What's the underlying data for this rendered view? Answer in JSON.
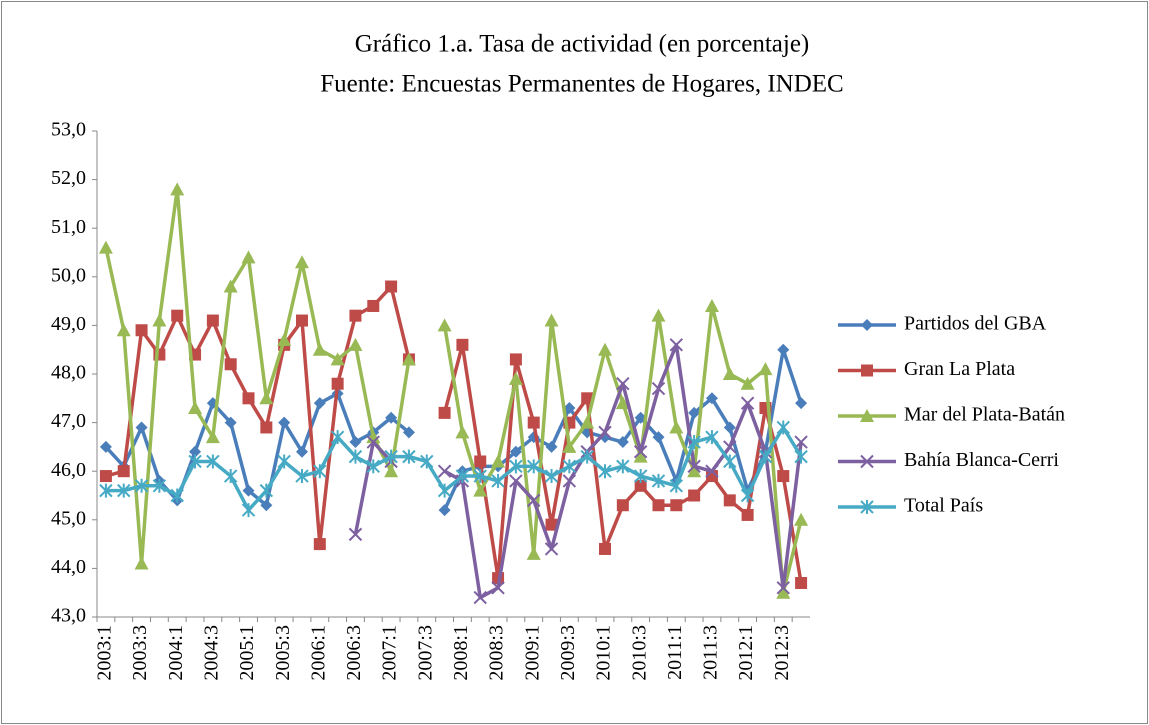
{
  "chart_data": {
    "type": "line",
    "title": "Gráfico 1.a. Tasa de actividad (en porcentaje)",
    "subtitle": "Fuente: Encuestas Permanentes de Hogares, INDEC",
    "categories": [
      "2003:1",
      null,
      "2003:3",
      null,
      "2004:1",
      null,
      "2004:3",
      null,
      "2005:1",
      null,
      "2005:3",
      null,
      "2006:1",
      null,
      "2006:3",
      null,
      "2007:1",
      null,
      "2007:3",
      null,
      "2008:1",
      null,
      "2008:3",
      null,
      "2009:1",
      null,
      "2009:3",
      null,
      "2010:1",
      null,
      "2010:3",
      null,
      "2011:1",
      null,
      "2011:3",
      null,
      "2012:1",
      null,
      "2012:3",
      null
    ],
    "ylim": [
      43,
      53
    ],
    "yticks": [
      {
        "value": 43,
        "label": "43,0"
      },
      {
        "value": 44,
        "label": "44,0"
      },
      {
        "value": 45,
        "label": "45,0"
      },
      {
        "value": 46,
        "label": "46,0"
      },
      {
        "value": 47,
        "label": "47,0"
      },
      {
        "value": 48,
        "label": "48,0"
      },
      {
        "value": 49,
        "label": "49,0"
      },
      {
        "value": 50,
        "label": "50,0"
      },
      {
        "value": 51,
        "label": "51,0"
      },
      {
        "value": 52,
        "label": "52,0"
      },
      {
        "value": 53,
        "label": "53,0"
      }
    ],
    "legend": "right",
    "series": [
      {
        "name": "Partidos del GBA",
        "color": "#4a7ebb",
        "marker": "diamond",
        "values": [
          46.5,
          46.1,
          46.9,
          45.8,
          45.4,
          46.4,
          47.4,
          47.0,
          45.6,
          45.3,
          47.0,
          46.4,
          47.4,
          47.6,
          46.6,
          46.8,
          47.1,
          46.8,
          null,
          45.2,
          46.0,
          46.1,
          46.1,
          46.4,
          46.7,
          46.5,
          47.3,
          46.8,
          46.7,
          46.6,
          47.1,
          46.7,
          45.8,
          47.2,
          47.5,
          46.9,
          45.6,
          46.4,
          48.5,
          47.4
        ]
      },
      {
        "name": "Gran La Plata",
        "color": "#be4b48",
        "marker": "square",
        "values": [
          45.9,
          46.0,
          48.9,
          48.4,
          49.2,
          48.4,
          49.1,
          48.2,
          47.5,
          46.9,
          48.6,
          49.1,
          44.5,
          47.8,
          49.2,
          49.4,
          49.8,
          48.3,
          null,
          47.2,
          48.6,
          46.2,
          43.8,
          48.3,
          47.0,
          44.9,
          47.0,
          47.5,
          44.4,
          45.3,
          45.7,
          45.3,
          45.3,
          45.5,
          45.9,
          45.4,
          45.1,
          47.3,
          45.9,
          43.7
        ]
      },
      {
        "name": "Mar del Plata-Batán",
        "color": "#98b954",
        "marker": "triangle",
        "values": [
          50.6,
          48.9,
          44.1,
          49.1,
          51.8,
          47.3,
          46.7,
          49.8,
          50.4,
          47.5,
          48.7,
          50.3,
          48.5,
          48.3,
          48.6,
          46.7,
          46.0,
          48.3,
          null,
          49.0,
          46.8,
          45.6,
          46.2,
          47.9,
          44.3,
          49.1,
          46.5,
          47.0,
          48.5,
          47.4,
          46.3,
          49.2,
          46.9,
          46.0,
          49.4,
          48.0,
          47.8,
          48.1,
          43.5,
          45.0
        ]
      },
      {
        "name": "Bahía Blanca-Cerri",
        "color": "#7d60a0",
        "marker": "x",
        "values": [
          null,
          null,
          null,
          null,
          null,
          null,
          null,
          null,
          null,
          null,
          null,
          null,
          null,
          null,
          44.7,
          46.6,
          46.2,
          null,
          null,
          46.0,
          45.8,
          43.4,
          43.6,
          45.8,
          45.4,
          44.4,
          45.8,
          46.4,
          46.8,
          47.8,
          46.4,
          47.7,
          48.6,
          46.1,
          46.0,
          46.5,
          47.4,
          46.4,
          43.6,
          46.6
        ]
      },
      {
        "name": "Total País",
        "color": "#46aac5",
        "marker": "star",
        "values": [
          45.6,
          45.6,
          45.7,
          45.7,
          45.5,
          46.2,
          46.2,
          45.9,
          45.2,
          45.6,
          46.2,
          45.9,
          46.0,
          46.7,
          46.3,
          46.1,
          46.3,
          46.3,
          46.2,
          45.6,
          45.9,
          45.9,
          45.8,
          46.1,
          46.1,
          45.9,
          46.1,
          46.3,
          46.0,
          46.1,
          45.9,
          45.8,
          45.7,
          46.6,
          46.7,
          46.2,
          45.5,
          46.3,
          46.9,
          46.3
        ]
      }
    ]
  }
}
